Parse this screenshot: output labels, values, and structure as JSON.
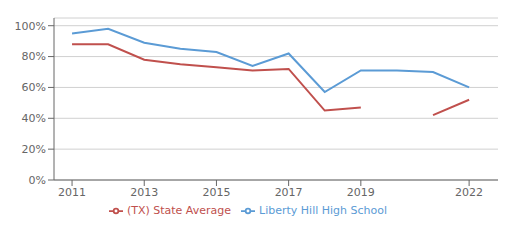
{
  "chart_data": {
    "type": "line",
    "x": [
      2011,
      2012,
      2013,
      2014,
      2015,
      2016,
      2017,
      2018,
      2019,
      2020,
      2021,
      2022
    ],
    "series": [
      {
        "name": "Liberty Hill High School",
        "color": "#5b9bd5",
        "values": [
          0.95,
          0.98,
          0.89,
          0.85,
          0.83,
          0.74,
          0.82,
          0.57,
          0.71,
          0.71,
          0.7,
          0.6
        ]
      },
      {
        "name": "(TX) State Average",
        "color": "#c0504d",
        "values": [
          0.88,
          0.88,
          0.78,
          0.75,
          0.73,
          0.71,
          0.72,
          0.45,
          0.47,
          null,
          0.42,
          0.52
        ]
      }
    ],
    "xlim": [
      2010.5,
      2022.8
    ],
    "ylim": [
      0.0,
      1.05
    ],
    "xticks": [
      2011,
      2013,
      2015,
      2017,
      2019,
      2022
    ],
    "yticks": [
      {
        "value": 0.0,
        "label": "0%"
      },
      {
        "value": 0.2,
        "label": "20%"
      },
      {
        "value": 0.4,
        "label": "40%"
      },
      {
        "value": 0.6,
        "label": "60%"
      },
      {
        "value": 0.8,
        "label": "80%"
      },
      {
        "value": 1.0,
        "label": "100%"
      }
    ],
    "grid": "y",
    "legend": "bottom"
  }
}
